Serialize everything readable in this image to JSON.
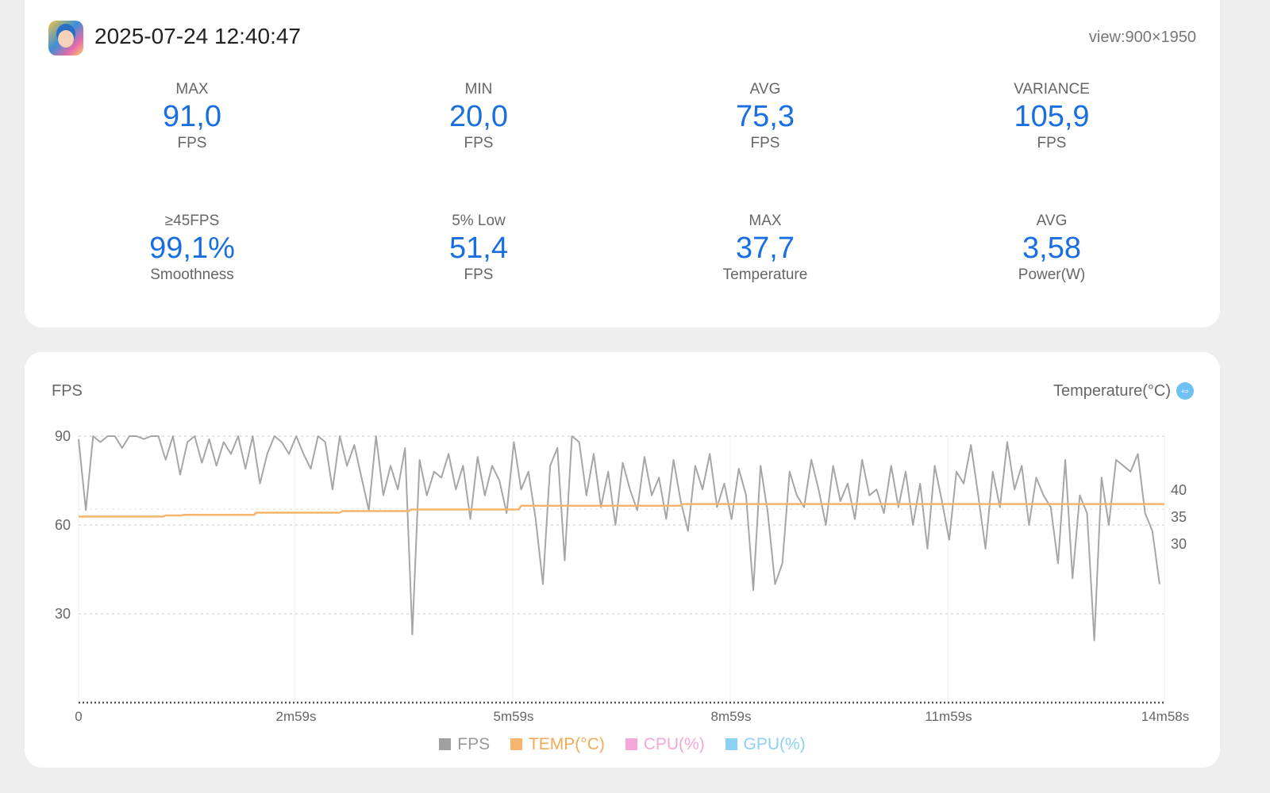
{
  "header": {
    "timestamp": "2025-07-24 12:40:47",
    "view": "view:900×1950"
  },
  "stats": [
    {
      "label": "MAX",
      "value": "91,0",
      "unit": "FPS"
    },
    {
      "label": "MIN",
      "value": "20,0",
      "unit": "FPS"
    },
    {
      "label": "AVG",
      "value": "75,3",
      "unit": "FPS"
    },
    {
      "label": "VARIANCE",
      "value": "105,9",
      "unit": "FPS"
    },
    {
      "label": "≥45FPS",
      "value": "99,1%",
      "unit": "Smoothness"
    },
    {
      "label": "5% Low",
      "value": "51,4",
      "unit": "FPS"
    },
    {
      "label": "MAX",
      "value": "37,7",
      "unit": "Temperature"
    },
    {
      "label": "AVG",
      "value": "3,58",
      "unit": "Power(W)"
    }
  ],
  "chart_data": {
    "type": "line",
    "left_title": "FPS",
    "right_title": "Temperature(°C)",
    "y_ticks": [
      "90",
      "60",
      "30"
    ],
    "y_range": [
      0,
      90
    ],
    "y2_ticks": [
      "40",
      "35",
      "30"
    ],
    "x_ticks": [
      "0",
      "2m59s",
      "5m59s",
      "8m59s",
      "11m59s",
      "14m58s"
    ],
    "x_range_s": [
      0,
      898
    ],
    "legend": [
      {
        "name": "FPS",
        "color": "#a0a0a0"
      },
      {
        "name": "TEMP(°C)",
        "color": "#f7b56b"
      },
      {
        "name": "CPU(%)",
        "color": "#f4a6d8"
      },
      {
        "name": "GPU(%)",
        "color": "#8dd0f5"
      }
    ],
    "fps_step_s": 6,
    "fps": [
      89,
      65,
      90,
      88,
      90,
      90,
      86,
      90,
      90,
      89,
      90,
      90,
      82,
      90,
      77,
      88,
      90,
      81,
      89,
      80,
      88,
      84,
      90,
      79,
      90,
      74,
      84,
      90,
      88,
      84,
      90,
      84,
      79,
      90,
      88,
      72,
      90,
      80,
      87,
      76,
      65,
      90,
      70,
      80,
      72,
      86,
      23,
      82,
      70,
      78,
      76,
      84,
      72,
      80,
      62,
      83,
      70,
      80,
      75,
      64,
      88,
      72,
      78,
      62,
      40,
      80,
      86,
      48,
      90,
      88,
      70,
      84,
      66,
      78,
      60,
      81,
      72,
      65,
      83,
      70,
      76,
      62,
      82,
      68,
      58,
      80,
      72,
      84,
      66,
      74,
      62,
      79,
      70,
      38,
      80,
      64,
      40,
      47,
      78,
      70,
      66,
      82,
      72,
      60,
      80,
      68,
      74,
      62,
      82,
      70,
      72,
      64,
      80,
      66,
      78,
      60,
      74,
      52,
      80,
      68,
      55,
      78,
      74,
      87,
      70,
      52,
      78,
      66,
      88,
      72,
      80,
      60,
      76,
      70,
      66,
      47,
      82,
      42,
      70,
      64,
      21,
      76,
      60,
      82,
      80,
      78,
      84,
      64,
      58,
      40
    ],
    "temp": [
      [
        0,
        35.1
      ],
      [
        70,
        35.1
      ],
      [
        72,
        35.3
      ],
      [
        85,
        35.3
      ],
      [
        87,
        35.4
      ],
      [
        145,
        35.4
      ],
      [
        147,
        35.8
      ],
      [
        216,
        35.8
      ],
      [
        218,
        36.1
      ],
      [
        273,
        36.1
      ],
      [
        275,
        36.4
      ],
      [
        364,
        36.4
      ],
      [
        366,
        37.1
      ],
      [
        498,
        37.1
      ],
      [
        500,
        37.4
      ],
      [
        898,
        37.4
      ]
    ]
  }
}
